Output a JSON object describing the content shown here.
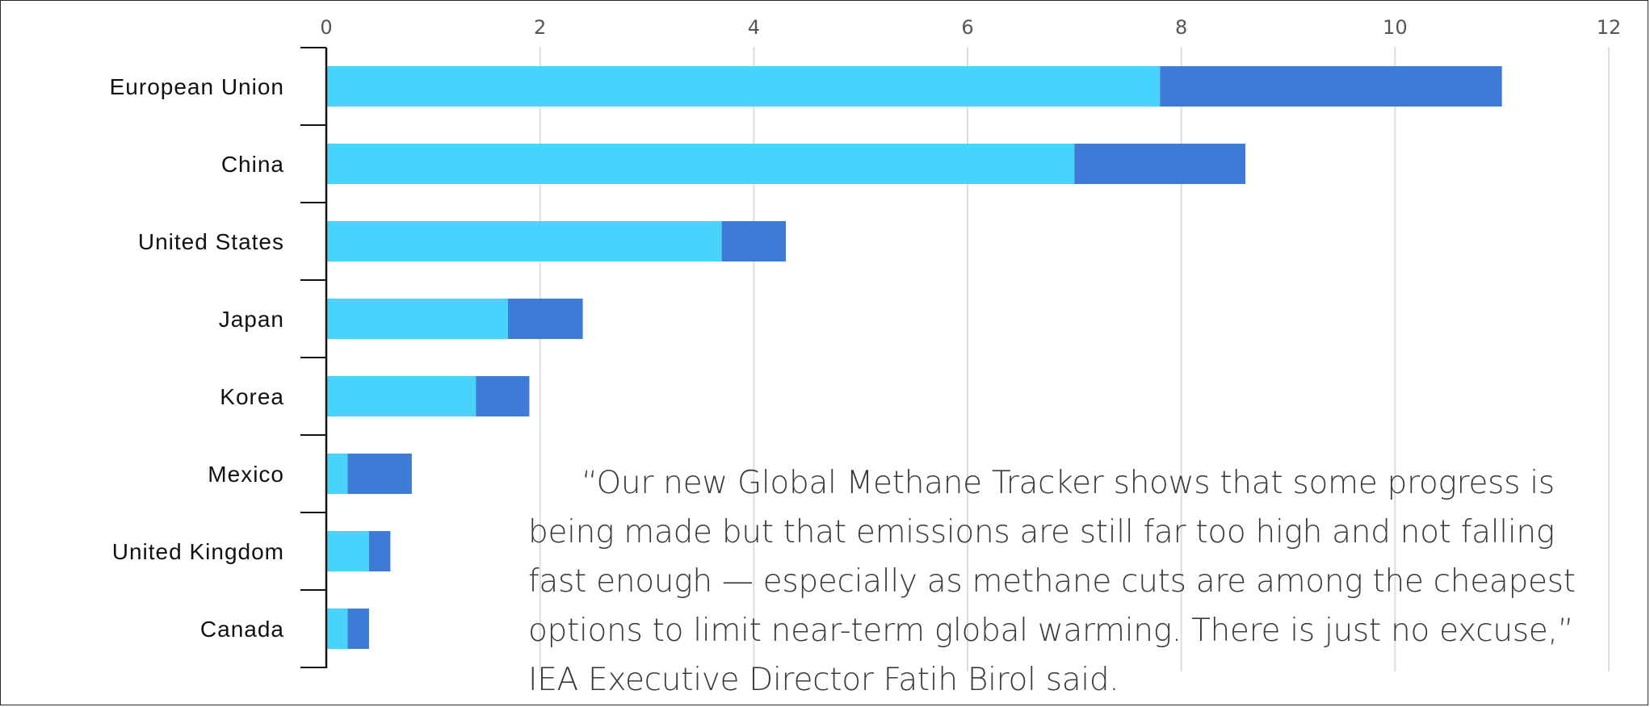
{
  "chart_data": {
    "type": "bar",
    "orientation": "horizontal",
    "stacked": true,
    "categories": [
      "European Union",
      "China",
      "United States",
      "Japan",
      "Korea",
      "Mexico",
      "United Kingdom",
      "Canada"
    ],
    "series": [
      {
        "values": [
          7.8,
          7.0,
          3.7,
          1.7,
          1.4,
          0.2,
          0.4,
          0.2
        ],
        "color": "#47D3FC"
      },
      {
        "values": [
          3.2,
          1.6,
          0.6,
          0.7,
          0.5,
          0.6,
          0.2,
          0.2
        ],
        "color": "#3E7BD6"
      }
    ],
    "x_ticks": [
      "0",
      "2",
      "4",
      "6",
      "8",
      "10",
      "12"
    ],
    "xlim": [
      0,
      12
    ],
    "axis_position": "top",
    "grid": true,
    "grid_color": "#DDDDDD"
  },
  "quote": {
    "text": "“Our new Global Methane Tracker shows that some progress is being made but that emissions are still far too high and not falling fast enough — especially as methane cuts are among the cheapest options to limit near-term global warming. There is just no excuse,” IEA Executive Director Fatih Birol said."
  }
}
